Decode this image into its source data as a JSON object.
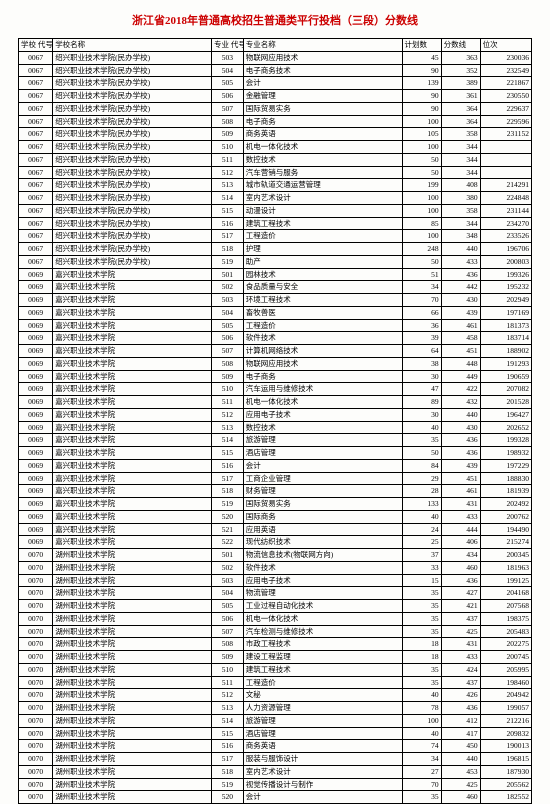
{
  "title": "浙江省2018年普通高校招生普通类平行投档（三段）分数线",
  "headers": {
    "school_code": "学校\n代号",
    "school_name": "学校名称",
    "major_code": "专业\n代号",
    "major_name": "专业名称",
    "plan": "计划数",
    "score": "分数线",
    "rank": "位次"
  },
  "rows": [
    [
      "0067",
      "绍兴职业技术学院(民办学校)",
      "503",
      "物联网应用技术",
      "45",
      "363",
      "230036"
    ],
    [
      "0067",
      "绍兴职业技术学院(民办学校)",
      "504",
      "电子商务技术",
      "90",
      "352",
      "232549"
    ],
    [
      "0067",
      "绍兴职业技术学院(民办学校)",
      "505",
      "会计",
      "139",
      "389",
      "221867"
    ],
    [
      "0067",
      "绍兴职业技术学院(民办学校)",
      "506",
      "金融管理",
      "90",
      "361",
      "230550"
    ],
    [
      "0067",
      "绍兴职业技术学院(民办学校)",
      "507",
      "国际贸易实务",
      "90",
      "364",
      "229637"
    ],
    [
      "0067",
      "绍兴职业技术学院(民办学校)",
      "508",
      "电子商务",
      "100",
      "364",
      "229596"
    ],
    [
      "0067",
      "绍兴职业技术学院(民办学校)",
      "509",
      "商务英语",
      "105",
      "358",
      "231152"
    ],
    [
      "0067",
      "绍兴职业技术学院(民办学校)",
      "510",
      "机电一体化技术",
      "100",
      "344",
      ""
    ],
    [
      "0067",
      "绍兴职业技术学院(民办学校)",
      "511",
      "数控技术",
      "50",
      "344",
      ""
    ],
    [
      "0067",
      "绍兴职业技术学院(民办学校)",
      "512",
      "汽车营销与服务",
      "50",
      "344",
      ""
    ],
    [
      "0067",
      "绍兴职业技术学院(民办学校)",
      "513",
      "城市轨道交通运营管理",
      "199",
      "408",
      "214291"
    ],
    [
      "0067",
      "绍兴职业技术学院(民办学校)",
      "514",
      "室内艺术设计",
      "100",
      "380",
      "224848"
    ],
    [
      "0067",
      "绍兴职业技术学院(民办学校)",
      "515",
      "动漫设计",
      "100",
      "358",
      "231144"
    ],
    [
      "0067",
      "绍兴职业技术学院(民办学校)",
      "516",
      "建筑工程技术",
      "85",
      "344",
      "234270"
    ],
    [
      "0067",
      "绍兴职业技术学院(民办学校)",
      "517",
      "工程造价",
      "100",
      "348",
      "233526"
    ],
    [
      "0067",
      "绍兴职业技术学院(民办学校)",
      "518",
      "护理",
      "248",
      "440",
      "196706"
    ],
    [
      "0067",
      "绍兴职业技术学院(民办学校)",
      "519",
      "助产",
      "50",
      "433",
      "200803"
    ],
    [
      "0069",
      "嘉兴职业技术学院",
      "501",
      "园林技术",
      "51",
      "436",
      "199326"
    ],
    [
      "0069",
      "嘉兴职业技术学院",
      "502",
      "食品质量与安全",
      "34",
      "442",
      "195232"
    ],
    [
      "0069",
      "嘉兴职业技术学院",
      "503",
      "环境工程技术",
      "70",
      "430",
      "202949"
    ],
    [
      "0069",
      "嘉兴职业技术学院",
      "504",
      "畜牧兽医",
      "66",
      "439",
      "197169"
    ],
    [
      "0069",
      "嘉兴职业技术学院",
      "505",
      "工程造价",
      "36",
      "461",
      "181373"
    ],
    [
      "0069",
      "嘉兴职业技术学院",
      "506",
      "软件技术",
      "39",
      "458",
      "183714"
    ],
    [
      "0069",
      "嘉兴职业技术学院",
      "507",
      "计算机网络技术",
      "64",
      "451",
      "188902"
    ],
    [
      "0069",
      "嘉兴职业技术学院",
      "508",
      "物联网应用技术",
      "38",
      "448",
      "191293"
    ],
    [
      "0069",
      "嘉兴职业技术学院",
      "509",
      "电子商务",
      "30",
      "449",
      "190659"
    ],
    [
      "0069",
      "嘉兴职业技术学院",
      "510",
      "汽车运用与维修技术",
      "47",
      "422",
      "207082"
    ],
    [
      "0069",
      "嘉兴职业技术学院",
      "511",
      "机电一体化技术",
      "89",
      "432",
      "201528"
    ],
    [
      "0069",
      "嘉兴职业技术学院",
      "512",
      "应用电子技术",
      "30",
      "440",
      "196427"
    ],
    [
      "0069",
      "嘉兴职业技术学院",
      "513",
      "数控技术",
      "40",
      "430",
      "202652"
    ],
    [
      "0069",
      "嘉兴职业技术学院",
      "514",
      "旅游管理",
      "35",
      "436",
      "199328"
    ],
    [
      "0069",
      "嘉兴职业技术学院",
      "515",
      "酒店管理",
      "50",
      "436",
      "198932"
    ],
    [
      "0069",
      "嘉兴职业技术学院",
      "516",
      "会计",
      "84",
      "439",
      "197229"
    ],
    [
      "0069",
      "嘉兴职业技术学院",
      "517",
      "工商企业管理",
      "29",
      "451",
      "188830"
    ],
    [
      "0069",
      "嘉兴职业技术学院",
      "518",
      "财务管理",
      "28",
      "461",
      "181939"
    ],
    [
      "0069",
      "嘉兴职业技术学院",
      "519",
      "国际贸易实务",
      "133",
      "431",
      "202492"
    ],
    [
      "0069",
      "嘉兴职业技术学院",
      "520",
      "国际商务",
      "40",
      "433",
      "200762"
    ],
    [
      "0069",
      "嘉兴职业技术学院",
      "521",
      "应用英语",
      "24",
      "444",
      "194490"
    ],
    [
      "0069",
      "嘉兴职业技术学院",
      "522",
      "现代纺织技术",
      "25",
      "406",
      "215274"
    ],
    [
      "0070",
      "湖州职业技术学院",
      "501",
      "物流信息技术(物联网方向)",
      "37",
      "434",
      "200345"
    ],
    [
      "0070",
      "湖州职业技术学院",
      "502",
      "软件技术",
      "33",
      "460",
      "181963"
    ],
    [
      "0070",
      "湖州职业技术学院",
      "503",
      "应用电子技术",
      "15",
      "436",
      "199125"
    ],
    [
      "0070",
      "湖州职业技术学院",
      "504",
      "物流管理",
      "35",
      "427",
      "204168"
    ],
    [
      "0070",
      "湖州职业技术学院",
      "505",
      "工业过程自动化技术",
      "35",
      "421",
      "207568"
    ],
    [
      "0070",
      "湖州职业技术学院",
      "506",
      "机电一体化技术",
      "35",
      "437",
      "198375"
    ],
    [
      "0070",
      "湖州职业技术学院",
      "507",
      "汽车检测与维修技术",
      "35",
      "425",
      "205483"
    ],
    [
      "0070",
      "湖州职业技术学院",
      "508",
      "市政工程技术",
      "18",
      "431",
      "202275"
    ],
    [
      "0070",
      "湖州职业技术学院",
      "509",
      "建设工程监理",
      "18",
      "433",
      "200745"
    ],
    [
      "0070",
      "湖州职业技术学院",
      "510",
      "建筑工程技术",
      "35",
      "424",
      "205995"
    ],
    [
      "0070",
      "湖州职业技术学院",
      "511",
      "工程造价",
      "35",
      "437",
      "198460"
    ],
    [
      "0070",
      "湖州职业技术学院",
      "512",
      "文秘",
      "40",
      "426",
      "204942"
    ],
    [
      "0070",
      "湖州职业技术学院",
      "513",
      "人力资源管理",
      "78",
      "436",
      "199057"
    ],
    [
      "0070",
      "湖州职业技术学院",
      "514",
      "旅游管理",
      "100",
      "412",
      "212216"
    ],
    [
      "0070",
      "湖州职业技术学院",
      "515",
      "酒店管理",
      "40",
      "417",
      "209832"
    ],
    [
      "0070",
      "湖州职业技术学院",
      "516",
      "商务英语",
      "74",
      "450",
      "190013"
    ],
    [
      "0070",
      "湖州职业技术学院",
      "517",
      "服装与服饰设计",
      "34",
      "440",
      "196815"
    ],
    [
      "0070",
      "湖州职业技术学院",
      "518",
      "室内艺术设计",
      "27",
      "453",
      "187930"
    ],
    [
      "0070",
      "湖州职业技术学院",
      "519",
      "视觉传播设计与制作",
      "70",
      "425",
      "205562"
    ],
    [
      "0070",
      "湖州职业技术学院",
      "520",
      "会计",
      "35",
      "460",
      "182552"
    ]
  ]
}
